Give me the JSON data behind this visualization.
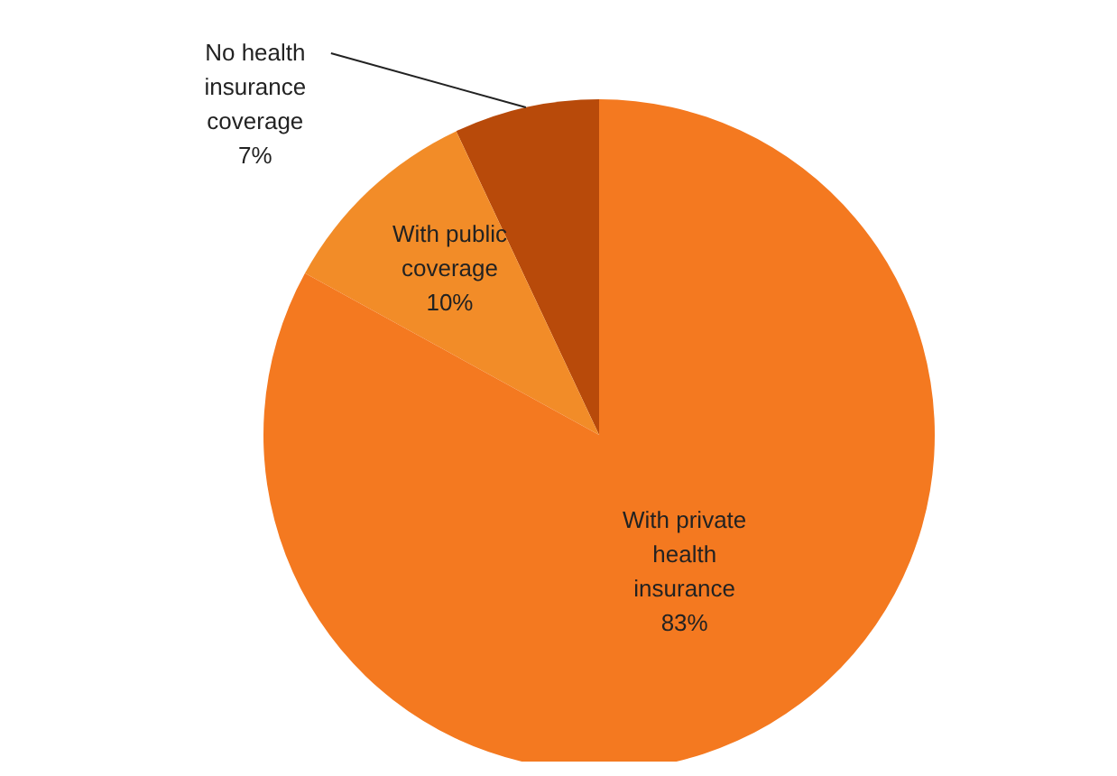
{
  "chart_data": {
    "type": "pie",
    "categories": [
      "No health insurance coverage",
      "With public coverage",
      "With private health insurance"
    ],
    "values": [
      7,
      10,
      83
    ],
    "value_labels": [
      "7%",
      "10%",
      "83%"
    ],
    "colors": [
      "#b84a0a",
      "#f28c28",
      "#f47920"
    ]
  }
}
